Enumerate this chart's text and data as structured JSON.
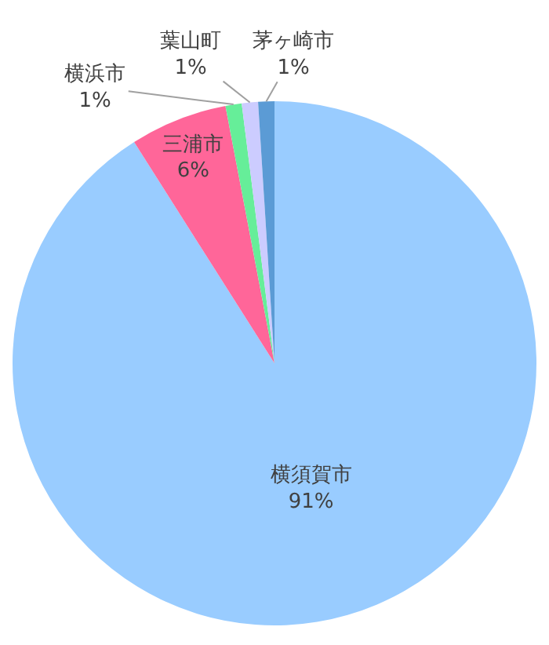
{
  "chart_data": {
    "type": "pie",
    "categories": [
      "横須賀市",
      "三浦市",
      "横浜市",
      "葉山町",
      "茅ヶ崎市"
    ],
    "values": [
      91,
      6,
      1,
      1,
      1
    ],
    "value_labels": [
      "91%",
      "6%",
      "1%",
      "1%",
      "1%"
    ],
    "colors": [
      "#99ccff",
      "#ff6699",
      "#66ee99",
      "#ccccff",
      "#5b9bd5"
    ],
    "legend": false
  }
}
